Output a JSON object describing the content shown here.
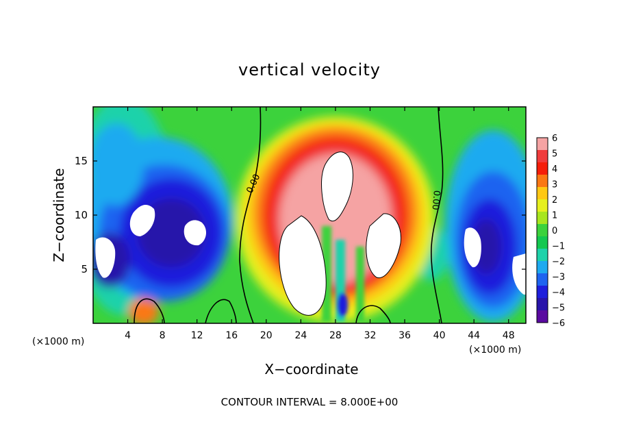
{
  "figure": {
    "title": "vertical velocity",
    "xlabel": "X−coordinate",
    "ylabel": "Z−coordinate",
    "x_unit_left": "(×1000 m)",
    "x_unit_right": "(×1000 m)",
    "footnote": "CONTOUR INTERVAL = 8.000E+00"
  },
  "chart_data": {
    "type": "heatmap",
    "title": "vertical velocity",
    "xlabel": "X−coordinate",
    "ylabel": "Z−coordinate",
    "x_unit": "×1000 m",
    "xlim": [
      0,
      50
    ],
    "ylim": [
      0,
      20
    ],
    "x_ticks": [
      4,
      8,
      12,
      16,
      20,
      24,
      28,
      32,
      36,
      40,
      44,
      48
    ],
    "x_tick_labels": [
      "4",
      "8",
      "12",
      "16",
      "20",
      "24",
      "28",
      "32",
      "36",
      "40",
      "44",
      "48"
    ],
    "y_ticks": [
      5,
      10,
      15
    ],
    "y_tick_labels": [
      "5",
      "10",
      "15"
    ],
    "colorbar": {
      "range": [
        -6,
        6
      ],
      "ticks": [
        6,
        5,
        4,
        3,
        2,
        1,
        0,
        -1,
        -2,
        -3,
        -4,
        -5,
        -6
      ],
      "tick_labels": [
        "6",
        "5",
        "4",
        "3",
        "2",
        "1",
        "0",
        "−1",
        "−2",
        "−3",
        "−4",
        "−5",
        "−6"
      ],
      "colors": [
        "#f5a3a3",
        "#f03c3c",
        "#f51e0a",
        "#fa7814",
        "#ffc814",
        "#e6f01e",
        "#a8e61e",
        "#3cd23c",
        "#14c850",
        "#1ed2aa",
        "#1eaaf0",
        "#1e64f0",
        "#1e1edc",
        "#2814aa",
        "#5a0aa0"
      ],
      "over_color": "#ffffff",
      "under_color": "#ffffff"
    },
    "contour_interval": 8.0,
    "contour_labels": [
      "0.00",
      "0.00"
    ]
  }
}
